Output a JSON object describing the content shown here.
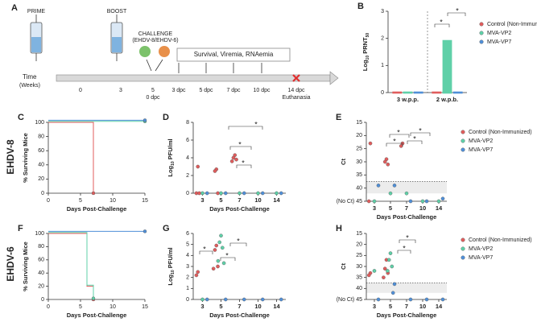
{
  "timeline": {
    "letter": "A",
    "prime": "PRIME",
    "boost": "BOOST",
    "challenge": "CHALLENGE",
    "challenge_viruses": "(EHDV-8/EHDV-6)",
    "monitoring": "Survival, Viremia, RNAemia",
    "axis_label": [
      "Time",
      "(Weeks)"
    ],
    "week_ticks": [
      "0",
      "3",
      "5"
    ],
    "dpc_ticks": [
      "0 dpc",
      "3 dpc",
      "5 dpc",
      "7 dpc",
      "10 dpc",
      "14 dpc"
    ],
    "endpoint": "Euthanasia"
  },
  "row_labels": [
    "EHDV-8",
    "EHDV-6"
  ],
  "chart_data": [
    {
      "type": "bar",
      "letter": "B",
      "ylabel": [
        "Log",
        "10",
        " PRNT",
        "50"
      ],
      "categories": [
        "3 w.p.p.",
        "2 w.p.b."
      ],
      "ylim": [
        0,
        3
      ],
      "yticks": [
        0,
        1,
        2,
        3
      ],
      "legend": true,
      "series": [
        {
          "name": "Control (Non-Immunized)",
          "color": "#e05c5c",
          "values": [
            0,
            0
          ]
        },
        {
          "name": "MVA-VP2",
          "color": "#5fd0a8",
          "values": [
            0,
            1.9
          ]
        },
        {
          "name": "MVA-VP7",
          "color": "#4f8fd8",
          "values": [
            0,
            0
          ]
        }
      ],
      "annotations": [
        "*",
        "*"
      ]
    },
    {
      "type": "step",
      "letter": "C",
      "ylabel": [
        "% Surviving Mice"
      ],
      "xlabel": "Days Post-Challenge",
      "xlim": [
        0,
        15
      ],
      "xticks": [
        0,
        5,
        10,
        15
      ],
      "ylim": [
        0,
        100
      ],
      "yticks": [
        0,
        20,
        40,
        60,
        80,
        100
      ],
      "series": [
        {
          "color": "#e05c5c",
          "x": [
            0,
            7
          ],
          "values": [
            100,
            0
          ]
        },
        {
          "color": "#5fd0a8",
          "x": [
            0,
            15
          ],
          "values": [
            100,
            100
          ]
        },
        {
          "color": "#4f8fd8",
          "x": [
            0,
            15
          ],
          "values": [
            100,
            100
          ]
        }
      ]
    },
    {
      "type": "dot",
      "letter": "D",
      "ylabel": [
        "Log",
        "10",
        " PFU/ml"
      ],
      "xlabel": "Days Post-Challenge",
      "categories": [
        3,
        5,
        7,
        10,
        14
      ],
      "ylim": [
        0,
        8
      ],
      "yticks": [
        0,
        2,
        4,
        6,
        8
      ],
      "series": [
        {
          "color": "#e05c5c",
          "x": [
            3,
            3,
            3,
            5,
            5,
            5,
            7,
            7,
            7,
            7
          ],
          "values": [
            3,
            0,
            0,
            2.7,
            2.5,
            0,
            4.3,
            4,
            3.8,
            3.6
          ]
        },
        {
          "color": "#5fd0a8",
          "x": [
            3,
            5,
            7,
            10,
            14
          ],
          "values": [
            0,
            0,
            0,
            0,
            0
          ]
        },
        {
          "color": "#4f8fd8",
          "x": [
            3,
            5,
            7,
            10,
            14
          ],
          "values": [
            0,
            0,
            0,
            0,
            0
          ]
        }
      ],
      "annotations": [
        "*",
        "*",
        "*"
      ]
    },
    {
      "type": "dot",
      "letter": "E",
      "ylabel": [
        "Ct"
      ],
      "xlabel": "Days Post-Challenge",
      "categories": [
        3,
        5,
        7,
        10,
        14
      ],
      "ylim": [
        45,
        15
      ],
      "yticks": [
        15,
        20,
        25,
        30,
        35,
        40,
        {
          "value": 45,
          "label": "(No Ct) 45"
        }
      ],
      "shaded_range": [
        37.5,
        42
      ],
      "legend": true,
      "series": [
        {
          "name": "Control (Non-Immunized)",
          "color": "#e05c5c",
          "x": [
            3,
            3,
            5,
            5,
            5,
            7,
            7
          ],
          "values": [
            23,
            45,
            29,
            30,
            31,
            23,
            24
          ]
        },
        {
          "name": "MVA-VP2",
          "color": "#5fd0a8",
          "x": [
            3,
            5,
            7,
            10,
            14
          ],
          "values": [
            45,
            42,
            42,
            45,
            45
          ]
        },
        {
          "name": "MVA-VP7",
          "color": "#4f8fd8",
          "x": [
            3,
            5,
            7,
            10,
            14
          ],
          "values": [
            39,
            39,
            45,
            45,
            44
          ]
        }
      ],
      "annotations": [
        "*",
        "*",
        "*",
        "*"
      ]
    },
    {
      "type": "step",
      "letter": "F",
      "ylabel": [
        "% Surviving Mice"
      ],
      "xlabel": "Days Post-Challenge",
      "xlim": [
        0,
        15
      ],
      "xticks": [
        0,
        5,
        10,
        15
      ],
      "ylim": [
        0,
        100
      ],
      "yticks": [
        0,
        20,
        40,
        60,
        80,
        100
      ],
      "series": [
        {
          "color": "#e05c5c",
          "x": [
            0,
            6,
            7
          ],
          "values": [
            100,
            20,
            0
          ]
        },
        {
          "color": "#5fd0a8",
          "x": [
            0,
            6,
            7
          ],
          "values": [
            100,
            20,
            0
          ]
        },
        {
          "color": "#4f8fd8",
          "x": [
            0,
            15
          ],
          "values": [
            100,
            100
          ]
        }
      ]
    },
    {
      "type": "dot",
      "letter": "G",
      "ylabel": [
        "Log",
        "10",
        " PFU/ml"
      ],
      "xlabel": "Days Post-Challenge",
      "categories": [
        3,
        5,
        7,
        10,
        14
      ],
      "ylim": [
        0,
        6
      ],
      "yticks": [
        0,
        1,
        2,
        3,
        4,
        5,
        6
      ],
      "series": [
        {
          "color": "#e05c5c",
          "x": [
            3,
            3,
            5,
            5,
            5,
            5
          ],
          "values": [
            2.5,
            2.2,
            4.9,
            4.5,
            3,
            2.8
          ]
        },
        {
          "color": "#5fd0a8",
          "x": [
            3,
            5,
            5,
            5,
            5,
            5
          ],
          "values": [
            0,
            5.8,
            5.2,
            4.7,
            3.5,
            3.3
          ]
        },
        {
          "color": "#4f8fd8",
          "x": [
            3,
            5,
            7,
            10,
            14
          ],
          "values": [
            0,
            0,
            0,
            0,
            0
          ]
        }
      ],
      "annotations": [
        "*",
        "*",
        "*"
      ]
    },
    {
      "type": "dot",
      "letter": "H",
      "ylabel": [
        "Ct"
      ],
      "xlabel": "Days Post-Challenge",
      "categories": [
        3,
        5,
        7,
        10,
        14
      ],
      "ylim": [
        45,
        15
      ],
      "yticks": [
        15,
        20,
        25,
        30,
        35,
        40,
        {
          "value": 45,
          "label": "(No Ct) 45"
        }
      ],
      "shaded_range": [
        37.5,
        42
      ],
      "legend": true,
      "series": [
        {
          "name": "Control (Non-Immunized)",
          "color": "#e05c5c",
          "x": [
            3,
            3,
            5,
            5,
            5,
            5
          ],
          "values": [
            33,
            34,
            27,
            31,
            33,
            35
          ]
        },
        {
          "name": "MVA-VP2",
          "color": "#5fd0a8",
          "x": [
            3,
            5,
            5,
            5,
            5
          ],
          "values": [
            32,
            24,
            27,
            30,
            32
          ]
        },
        {
          "name": "MVA-VP7",
          "color": "#4f8fd8",
          "x": [
            3,
            5,
            5,
            7,
            10,
            14
          ],
          "values": [
            45,
            38,
            42,
            45,
            45,
            45
          ]
        }
      ],
      "annotations": [
        "*",
        "*"
      ]
    }
  ]
}
